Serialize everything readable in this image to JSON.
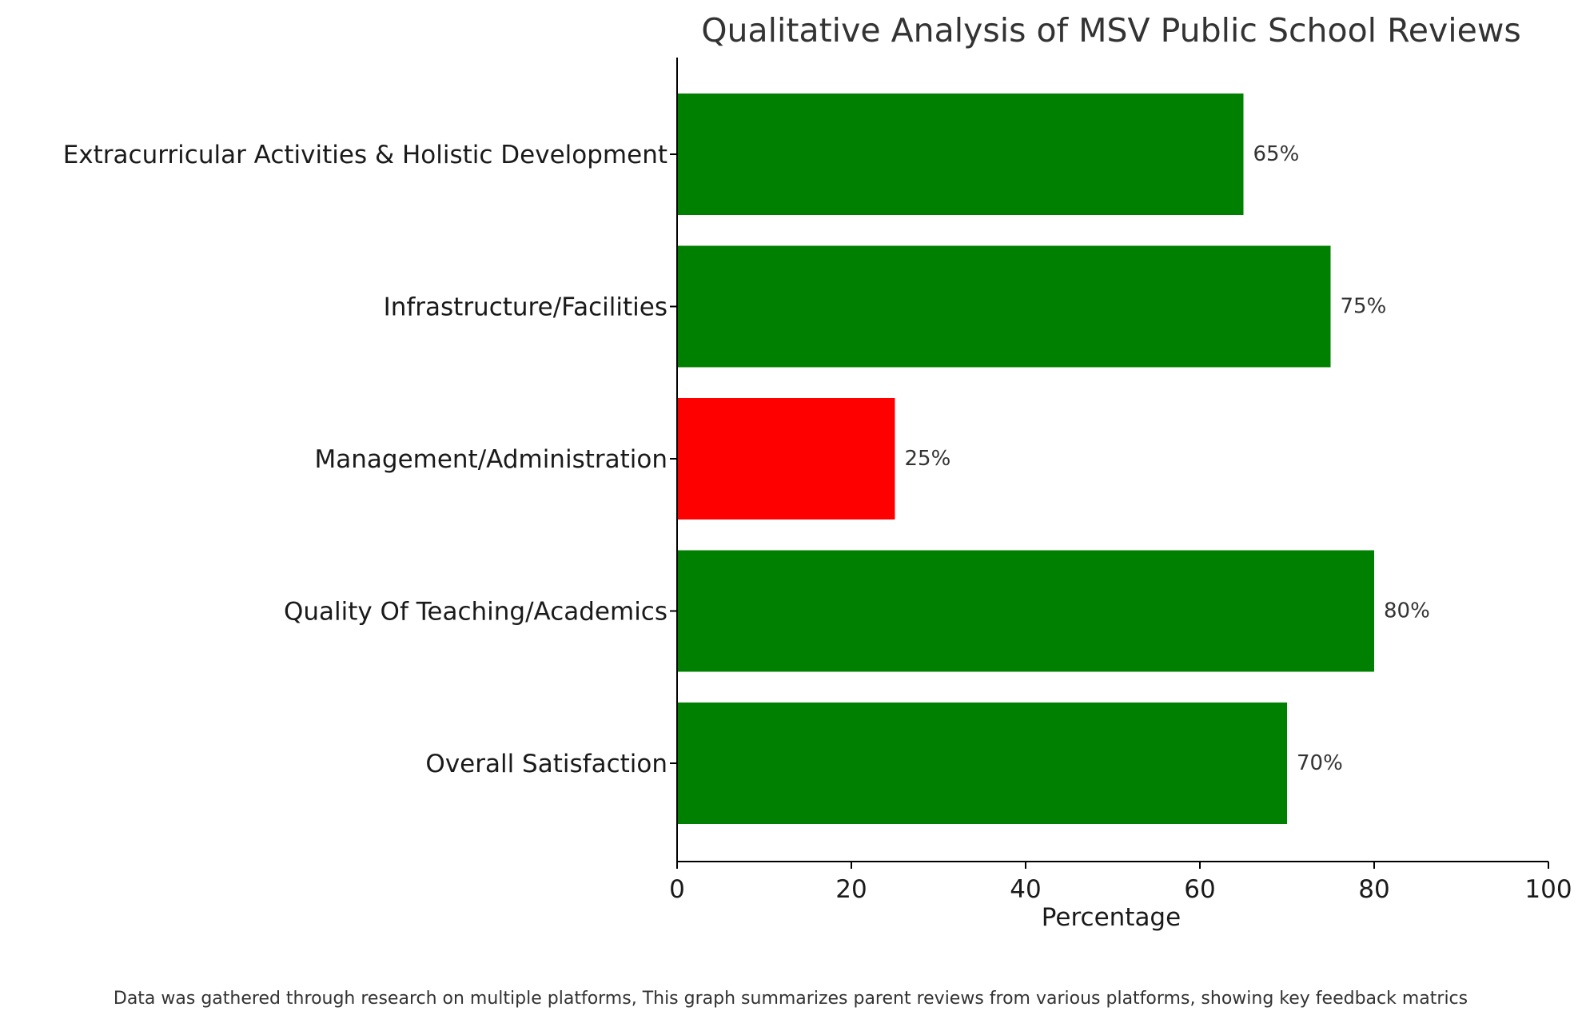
{
  "chart_data": {
    "type": "bar",
    "orientation": "horizontal",
    "title": "Qualitative Analysis of MSV Public School Reviews",
    "xlabel": "Percentage",
    "ylabel": "",
    "xlim": [
      0,
      100
    ],
    "xticks": [
      0,
      20,
      40,
      60,
      80,
      100
    ],
    "categories": [
      "Overall Satisfaction",
      "Quality Of Teaching/Academics",
      "Management/Administration",
      "Infrastructure/Facilities",
      "Extracurricular Activities & Holistic Development"
    ],
    "values": [
      70,
      80,
      25,
      75,
      65
    ],
    "value_labels": [
      "70%",
      "80%",
      "25%",
      "75%",
      "65%"
    ],
    "colors": [
      "#008000",
      "#008000",
      "#ff0000",
      "#008000",
      "#008000"
    ],
    "grid": false,
    "legend": "none",
    "caption": "Data was gathered through research on multiple platforms, This graph summarizes parent reviews from various platforms, showing key feedback matrics"
  }
}
